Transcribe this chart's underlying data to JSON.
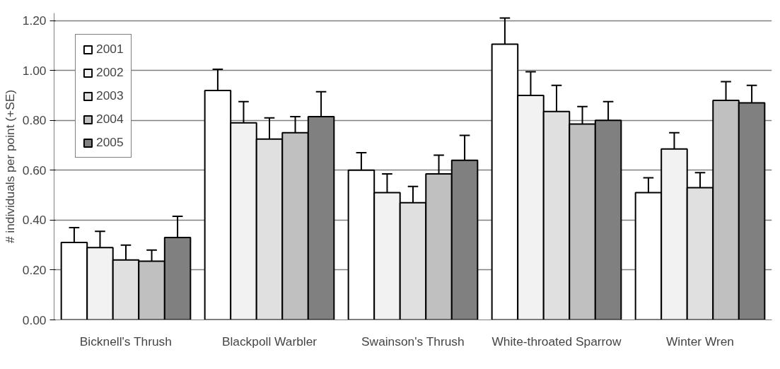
{
  "chart_data": {
    "type": "bar",
    "ylabel": "# individuals per point (+SE)",
    "categories": [
      "Bicknell's Thrush",
      "Blackpoll Warbler",
      "Swainson's Thrush",
      "White-throated Sparrow",
      "Winter Wren"
    ],
    "series": [
      {
        "name": "2001",
        "color": "#ffffff",
        "values": [
          0.31,
          0.92,
          0.6,
          1.105,
          0.51
        ],
        "errors": [
          [
            0.31,
            0.37
          ],
          [
            0.92,
            1.005
          ],
          [
            0.6,
            0.67
          ],
          [
            1.105,
            1.21
          ],
          [
            0.51,
            0.57
          ]
        ]
      },
      {
        "name": "2002",
        "color": "#f2f2f2",
        "values": [
          0.29,
          0.79,
          0.51,
          0.9,
          0.685
        ],
        "errors": [
          [
            0.29,
            0.355
          ],
          [
            0.79,
            0.875
          ],
          [
            0.51,
            0.585
          ],
          [
            0.9,
            0.995
          ],
          [
            0.685,
            0.75
          ]
        ]
      },
      {
        "name": "2003",
        "color": "#e0e0e0",
        "values": [
          0.24,
          0.725,
          0.47,
          0.835,
          0.53
        ],
        "errors": [
          [
            0.24,
            0.3
          ],
          [
            0.725,
            0.81
          ],
          [
            0.47,
            0.535
          ],
          [
            0.835,
            0.94
          ],
          [
            0.53,
            0.59
          ]
        ]
      },
      {
        "name": "2004",
        "color": "#c0c0c0",
        "values": [
          0.235,
          0.75,
          0.585,
          0.785,
          0.88
        ],
        "errors": [
          [
            0.235,
            0.28
          ],
          [
            0.75,
            0.815
          ],
          [
            0.585,
            0.66
          ],
          [
            0.785,
            0.855
          ],
          [
            0.88,
            0.955
          ]
        ]
      },
      {
        "name": "2005",
        "color": "#808080",
        "values": [
          0.33,
          0.815,
          0.64,
          0.8,
          0.87
        ],
        "errors": [
          [
            0.33,
            0.415
          ],
          [
            0.815,
            0.915
          ],
          [
            0.64,
            0.74
          ],
          [
            0.8,
            0.875
          ],
          [
            0.87,
            0.94
          ]
        ]
      }
    ],
    "ylim": [
      0,
      1.23
    ],
    "yticks": [
      {
        "value": 0,
        "label": "0.00"
      },
      {
        "value": 0.2,
        "label": "0.20"
      },
      {
        "value": 0.4,
        "label": "0.40"
      },
      {
        "value": 0.6,
        "label": "0.60"
      },
      {
        "value": 0.8,
        "label": "0.80"
      },
      {
        "value": 1.0,
        "label": "1.00"
      },
      {
        "value": 1.2,
        "label": "1.20"
      }
    ],
    "grid": "y",
    "legend": "top left"
  }
}
